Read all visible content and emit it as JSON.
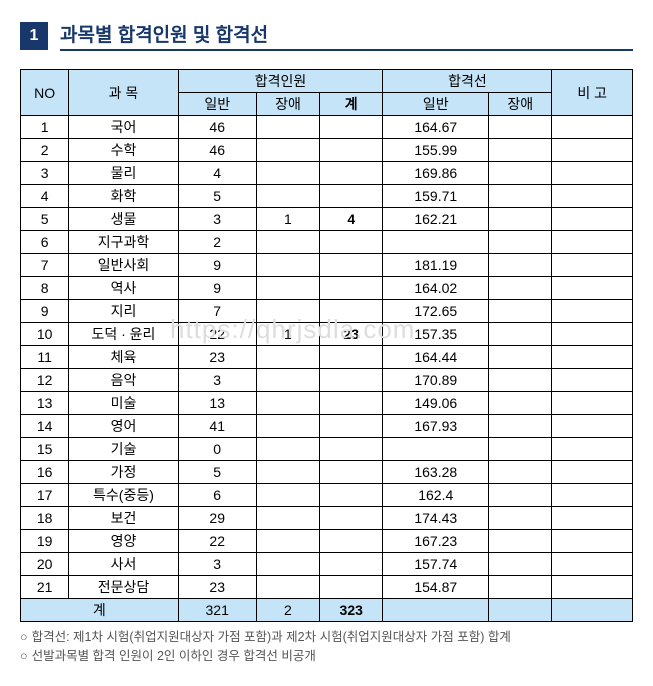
{
  "header": {
    "num": "1",
    "title": "과목별 합격인원 및 합격선"
  },
  "cols": {
    "no": "NO",
    "subject": "과 목",
    "pass": "합격인원",
    "gen": "일반",
    "dis": "장애",
    "tot": "계",
    "cut": "합격선",
    "cutgen": "일반",
    "cutdis": "장애",
    "note": "비 고"
  },
  "rows": [
    {
      "no": "1",
      "subj": "국어",
      "gen": "46",
      "dis": "",
      "tot": "",
      "cutgen": "164.67",
      "cutdis": "",
      "note": ""
    },
    {
      "no": "2",
      "subj": "수학",
      "gen": "46",
      "dis": "",
      "tot": "",
      "cutgen": "155.99",
      "cutdis": "",
      "note": ""
    },
    {
      "no": "3",
      "subj": "물리",
      "gen": "4",
      "dis": "",
      "tot": "",
      "cutgen": "169.86",
      "cutdis": "",
      "note": ""
    },
    {
      "no": "4",
      "subj": "화학",
      "gen": "5",
      "dis": "",
      "tot": "",
      "cutgen": "159.71",
      "cutdis": "",
      "note": ""
    },
    {
      "no": "5",
      "subj": "생물",
      "gen": "3",
      "dis": "1",
      "tot": "4",
      "cutgen": "162.21",
      "cutdis": "",
      "note": ""
    },
    {
      "no": "6",
      "subj": "지구과학",
      "gen": "2",
      "dis": "",
      "tot": "",
      "cutgen": "",
      "cutdis": "",
      "note": ""
    },
    {
      "no": "7",
      "subj": "일반사회",
      "gen": "9",
      "dis": "",
      "tot": "",
      "cutgen": "181.19",
      "cutdis": "",
      "note": ""
    },
    {
      "no": "8",
      "subj": "역사",
      "gen": "9",
      "dis": "",
      "tot": "",
      "cutgen": "164.02",
      "cutdis": "",
      "note": ""
    },
    {
      "no": "9",
      "subj": "지리",
      "gen": "7",
      "dis": "",
      "tot": "",
      "cutgen": "172.65",
      "cutdis": "",
      "note": ""
    },
    {
      "no": "10",
      "subj": "도덕 · 윤리",
      "gen": "22",
      "dis": "1",
      "tot": "23",
      "cutgen": "157.35",
      "cutdis": "",
      "note": ""
    },
    {
      "no": "11",
      "subj": "체육",
      "gen": "23",
      "dis": "",
      "tot": "",
      "cutgen": "164.44",
      "cutdis": "",
      "note": ""
    },
    {
      "no": "12",
      "subj": "음악",
      "gen": "3",
      "dis": "",
      "tot": "",
      "cutgen": "170.89",
      "cutdis": "",
      "note": ""
    },
    {
      "no": "13",
      "subj": "미술",
      "gen": "13",
      "dis": "",
      "tot": "",
      "cutgen": "149.06",
      "cutdis": "",
      "note": ""
    },
    {
      "no": "14",
      "subj": "영어",
      "gen": "41",
      "dis": "",
      "tot": "",
      "cutgen": "167.93",
      "cutdis": "",
      "note": ""
    },
    {
      "no": "15",
      "subj": "기술",
      "gen": "0",
      "dis": "",
      "tot": "",
      "cutgen": "",
      "cutdis": "",
      "note": ""
    },
    {
      "no": "16",
      "subj": "가정",
      "gen": "5",
      "dis": "",
      "tot": "",
      "cutgen": "163.28",
      "cutdis": "",
      "note": ""
    },
    {
      "no": "17",
      "subj": "특수(중등)",
      "gen": "6",
      "dis": "",
      "tot": "",
      "cutgen": "162.4",
      "cutdis": "",
      "note": ""
    },
    {
      "no": "18",
      "subj": "보건",
      "gen": "29",
      "dis": "",
      "tot": "",
      "cutgen": "174.43",
      "cutdis": "",
      "note": ""
    },
    {
      "no": "19",
      "subj": "영양",
      "gen": "22",
      "dis": "",
      "tot": "",
      "cutgen": "167.23",
      "cutdis": "",
      "note": ""
    },
    {
      "no": "20",
      "subj": "사서",
      "gen": "3",
      "dis": "",
      "tot": "",
      "cutgen": "157.74",
      "cutdis": "",
      "note": ""
    },
    {
      "no": "21",
      "subj": "전문상담",
      "gen": "23",
      "dis": "",
      "tot": "",
      "cutgen": "154.87",
      "cutdis": "",
      "note": ""
    }
  ],
  "footer": {
    "label": "계",
    "gen": "321",
    "dis": "2",
    "tot": "323",
    "cutgen": "",
    "cutdis": "",
    "note": ""
  },
  "watermark": "https://qhrjsdla.com",
  "notes": {
    "n1": "합격선: 제1차 시험(취업지원대상자 가점 포함)과 제2차 시험(취업지원대상자 가점 포함) 합계",
    "n2": "선발과목별 합격 인원이 2인 이하인 경우 합격선 비공개"
  }
}
